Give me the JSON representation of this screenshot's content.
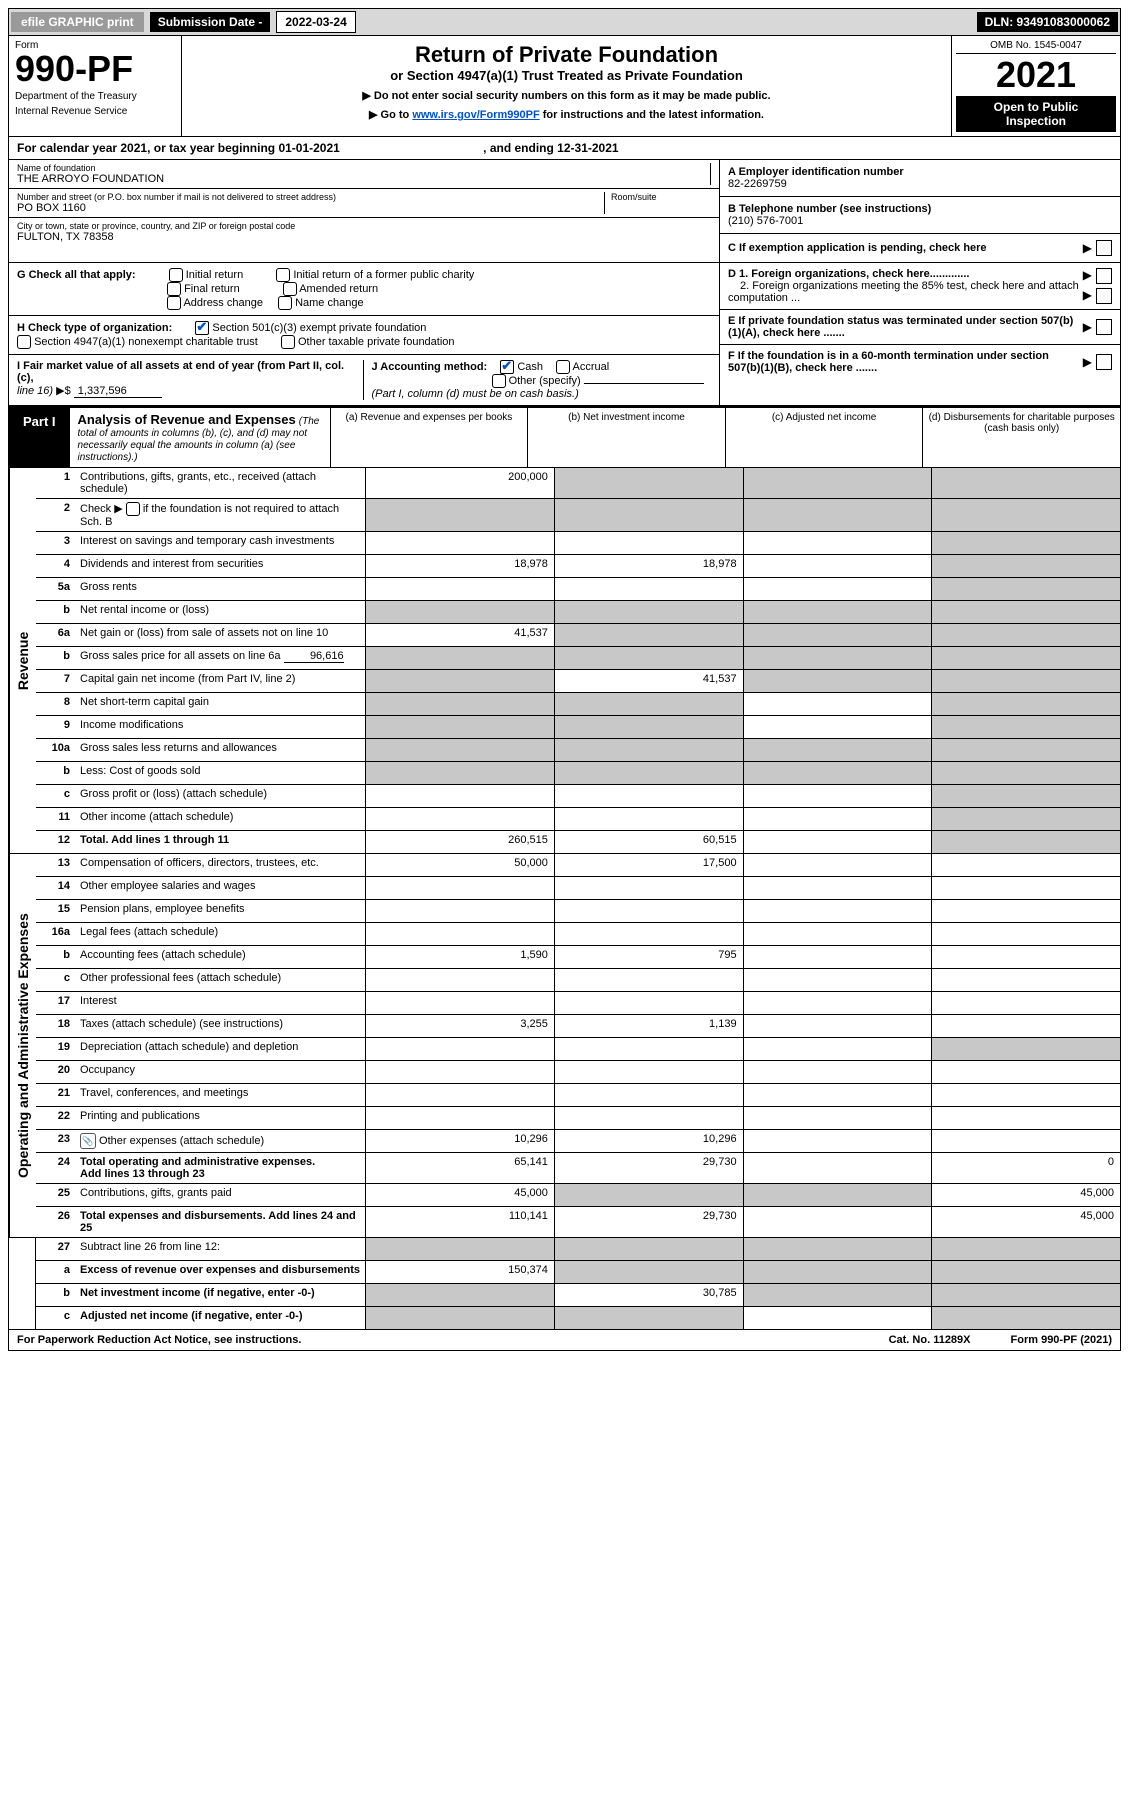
{
  "topbar": {
    "efile": "efile GRAPHIC print",
    "sub_label": "Submission Date - ",
    "sub_date": "2022-03-24",
    "dln": "DLN: 93491083000062"
  },
  "header": {
    "form_label": "Form",
    "form_num": "990-PF",
    "dept1": "Department of the Treasury",
    "dept2": "Internal Revenue Service",
    "title": "Return of Private Foundation",
    "sub": "or Section 4947(a)(1) Trust Treated as Private Foundation",
    "note1": "▶ Do not enter social security numbers on this form as it may be made public.",
    "note2_a": "▶ Go to ",
    "note2_link": "www.irs.gov/Form990PF",
    "note2_b": " for instructions and the latest information.",
    "omb": "OMB No. 1545-0047",
    "year": "2021",
    "open1": "Open to Public",
    "open2": "Inspection"
  },
  "cal": {
    "a": "For calendar year 2021, or tax year beginning 01-01-2021",
    "b": ", and ending 12-31-2021"
  },
  "info_left": {
    "name_lab": "Name of foundation",
    "name_val": "THE ARROYO FOUNDATION",
    "addr_lab": "Number and street (or P.O. box number if mail is not delivered to street address)",
    "addr_val": "PO BOX 1160",
    "room_lab": "Room/suite",
    "city_lab": "City or town, state or province, country, and ZIP or foreign postal code",
    "city_val": "FULTON, TX  78358"
  },
  "info_right": {
    "a_lab": "A Employer identification number",
    "a_val": "82-2269759",
    "b_lab": "B Telephone number (see instructions)",
    "b_val": "(210) 576-7001",
    "c_lab": "C If exemption application is pending, check here",
    "d1": "D 1. Foreign organizations, check here.............",
    "d2": "2. Foreign organizations meeting the 85% test, check here and attach computation ...",
    "e": "E  If private foundation status was terminated under section 507(b)(1)(A), check here .......",
    "f": "F  If the foundation is in a 60-month termination under section 507(b)(1)(B), check here ......."
  },
  "g": {
    "lab": "G Check all that apply:",
    "o1": "Initial return",
    "o2": "Final return",
    "o3": "Address change",
    "o4": "Initial return of a former public charity",
    "o5": "Amended return",
    "o6": "Name change"
  },
  "h": {
    "lab": "H Check type of organization:",
    "o1": "Section 501(c)(3) exempt private foundation",
    "o2": "Section 4947(a)(1) nonexempt charitable trust",
    "o3": "Other taxable private foundation"
  },
  "i": {
    "lab_a": "I Fair market value of all assets at end of year (from Part II, col. (c),",
    "lab_b": "line 16)",
    "arrow": "▶$",
    "val": "1,337,596"
  },
  "j": {
    "lab": "J Accounting method:",
    "o1": "Cash",
    "o2": "Accrual",
    "o3": "Other (specify)",
    "note": "(Part I, column (d) must be on cash basis.)"
  },
  "part1": {
    "tag": "Part I",
    "title": "Analysis of Revenue and Expenses",
    "sub": " (The total of amounts in columns (b), (c), and (d) may not necessarily equal the amounts in column (a) (see instructions).)",
    "col_a": "(a)   Revenue and expenses per books",
    "col_b": "(b)   Net investment income",
    "col_c": "(c)   Adjusted net income",
    "col_d": "(d)   Disbursements for charitable purposes (cash basis only)"
  },
  "side": {
    "rev": "Revenue",
    "exp": "Operating and Administrative Expenses"
  },
  "rows": {
    "r1": {
      "n": "1",
      "t": "Contributions, gifts, grants, etc., received (attach schedule)",
      "a": "200,000"
    },
    "r2": {
      "n": "2",
      "t": "Check ▶ ",
      "t2": " if the foundation is not required to attach Sch. B",
      "dots": true
    },
    "r3": {
      "n": "3",
      "t": "Interest on savings and temporary cash investments"
    },
    "r4": {
      "n": "4",
      "t": "Dividends and interest from securities",
      "a": "18,978",
      "b": "18,978"
    },
    "r5a": {
      "n": "5a",
      "t": "Gross rents"
    },
    "r5b": {
      "n": "b",
      "t": "Net rental income or (loss)"
    },
    "r6a": {
      "n": "6a",
      "t": "Net gain or (loss) from sale of assets not on line 10",
      "a": "41,537"
    },
    "r6b": {
      "n": "b",
      "t": "Gross sales price for all assets on line 6a",
      "inline": "96,616"
    },
    "r7": {
      "n": "7",
      "t": "Capital gain net income (from Part IV, line 2)",
      "b": "41,537"
    },
    "r8": {
      "n": "8",
      "t": "Net short-term capital gain"
    },
    "r9": {
      "n": "9",
      "t": "Income modifications"
    },
    "r10a": {
      "n": "10a",
      "t": "Gross sales less returns and allowances"
    },
    "r10b": {
      "n": "b",
      "t": "Less: Cost of goods sold"
    },
    "r10c": {
      "n": "c",
      "t": "Gross profit or (loss) (attach schedule)"
    },
    "r11": {
      "n": "11",
      "t": "Other income (attach schedule)"
    },
    "r12": {
      "n": "12",
      "t": "Total. Add lines 1 through 11",
      "a": "260,515",
      "b": "60,515",
      "bold": true
    },
    "r13": {
      "n": "13",
      "t": "Compensation of officers, directors, trustees, etc.",
      "a": "50,000",
      "b": "17,500"
    },
    "r14": {
      "n": "14",
      "t": "Other employee salaries and wages"
    },
    "r15": {
      "n": "15",
      "t": "Pension plans, employee benefits"
    },
    "r16a": {
      "n": "16a",
      "t": "Legal fees (attach schedule)"
    },
    "r16b": {
      "n": "b",
      "t": "Accounting fees (attach schedule)",
      "a": "1,590",
      "b": "795"
    },
    "r16c": {
      "n": "c",
      "t": "Other professional fees (attach schedule)"
    },
    "r17": {
      "n": "17",
      "t": "Interest"
    },
    "r18": {
      "n": "18",
      "t": "Taxes (attach schedule) (see instructions)",
      "a": "3,255",
      "b": "1,139"
    },
    "r19": {
      "n": "19",
      "t": "Depreciation (attach schedule) and depletion"
    },
    "r20": {
      "n": "20",
      "t": "Occupancy"
    },
    "r21": {
      "n": "21",
      "t": "Travel, conferences, and meetings"
    },
    "r22": {
      "n": "22",
      "t": "Printing and publications"
    },
    "r23": {
      "n": "23",
      "t": "Other expenses (attach schedule)",
      "a": "10,296",
      "b": "10,296",
      "icon": true
    },
    "r24": {
      "n": "24",
      "t": "Total operating and administrative expenses.",
      "t2": "Add lines 13 through 23",
      "a": "65,141",
      "b": "29,730",
      "d": "0",
      "bold": true
    },
    "r25": {
      "n": "25",
      "t": "Contributions, gifts, grants paid",
      "a": "45,000",
      "d": "45,000"
    },
    "r26": {
      "n": "26",
      "t": "Total expenses and disbursements. Add lines 24 and 25",
      "a": "110,141",
      "b": "29,730",
      "d": "45,000",
      "bold": true
    },
    "r27": {
      "n": "27",
      "t": "Subtract line 26 from line 12:"
    },
    "r27a": {
      "n": "a",
      "t": "Excess of revenue over expenses and disbursements",
      "a": "150,374",
      "bold": true
    },
    "r27b": {
      "n": "b",
      "t": "Net investment income (if negative, enter -0-)",
      "b": "30,785",
      "bold": true
    },
    "r27c": {
      "n": "c",
      "t": "Adjusted net income (if negative, enter -0-)",
      "bold": true
    }
  },
  "footer": {
    "left": "For Paperwork Reduction Act Notice, see instructions.",
    "mid": "Cat. No. 11289X",
    "right": "Form 990-PF (2021)"
  },
  "colors": {
    "grey_bg": "#c8c8c8",
    "link": "#0052cc",
    "black": "#000000",
    "white": "#ffffff",
    "topbar_bg": "#d8d8d8",
    "btn_bg": "#9a9a9a"
  }
}
